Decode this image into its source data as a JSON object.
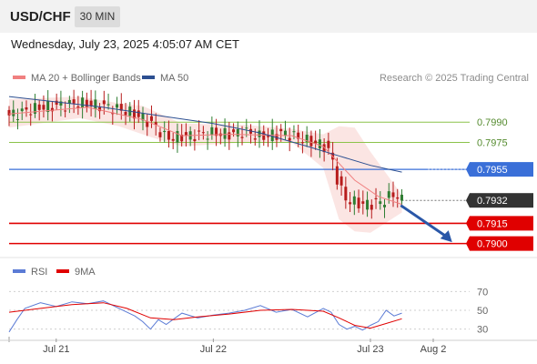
{
  "header": {
    "symbol": "USD/CHF",
    "timeframe": "30 MIN"
  },
  "datetime": "Wednesday, July 23, 2025 4:05:07 AM CET",
  "credit": "Research © 2025 Trading Central",
  "legend": {
    "main": [
      {
        "label": "MA 20 + Bollinger Bands",
        "color": "#f08080"
      },
      {
        "label": "MA 50",
        "color": "#2c4f91"
      }
    ],
    "rsi": [
      {
        "label": "RSI",
        "color": "#5b7bd5"
      },
      {
        "label": "9MA",
        "color": "#e00000"
      }
    ]
  },
  "colors": {
    "up": "#2e7d32",
    "down": "#b71c1c",
    "support": "#e00000",
    "resistance_green": "#8bc34a",
    "pivot": "#3a6fd8",
    "current": "#333333",
    "forecast_arrow": "#2a57a8"
  },
  "x_axis": {
    "labels": [
      {
        "text": "Jul 21",
        "t": 0.0
      },
      {
        "text": "Jul 22",
        "t": 1.0
      },
      {
        "text": "Jul 23",
        "t": 2.0
      },
      {
        "text": "Aug 2",
        "t": 2.4
      }
    ]
  },
  "chart_data": [
    {
      "type": "candlestick",
      "ylim": [
        0.7893,
        0.8005
      ],
      "x_unit": "days since Jul 21",
      "xlim": [
        -0.3,
        2.4
      ],
      "levels": [
        {
          "value": 0.799,
          "label": "0.7990",
          "kind": "resistance"
        },
        {
          "value": 0.7975,
          "label": "0.7975",
          "kind": "resistance"
        },
        {
          "value": 0.7955,
          "label": "0.7955",
          "kind": "pivot"
        },
        {
          "value": 0.7932,
          "label": "0.7932",
          "kind": "current"
        },
        {
          "value": 0.7915,
          "label": "0.7915",
          "kind": "support"
        },
        {
          "value": 0.79,
          "label": "0.7900",
          "kind": "support"
        }
      ],
      "close_path": [
        [
          -0.3,
          0.7995
        ],
        [
          -0.1,
          0.8001
        ],
        [
          0.15,
          0.8004
        ],
        [
          0.3,
          0.8002
        ],
        [
          0.45,
          0.7998
        ],
        [
          0.55,
          0.7993
        ],
        [
          0.63,
          0.7987
        ],
        [
          0.7,
          0.7978
        ],
        [
          0.85,
          0.798
        ],
        [
          1.0,
          0.7982
        ],
        [
          1.1,
          0.7981
        ],
        [
          1.2,
          0.7983
        ],
        [
          1.3,
          0.7979
        ],
        [
          1.45,
          0.7982
        ],
        [
          1.6,
          0.7976
        ],
        [
          1.7,
          0.7973
        ],
        [
          1.75,
          0.7966
        ],
        [
          1.8,
          0.7942
        ],
        [
          1.85,
          0.7932
        ],
        [
          1.95,
          0.7929
        ],
        [
          2.05,
          0.793
        ],
        [
          2.1,
          0.7933
        ],
        [
          2.15,
          0.7937
        ],
        [
          2.2,
          0.7932
        ]
      ],
      "ma50": [
        [
          -0.3,
          0.8009
        ],
        [
          0.3,
          0.8001
        ],
        [
          0.7,
          0.7994
        ],
        [
          1.0,
          0.7989
        ],
        [
          1.3,
          0.7982
        ],
        [
          1.6,
          0.7972
        ],
        [
          1.8,
          0.7965
        ],
        [
          2.0,
          0.7958
        ],
        [
          2.2,
          0.7953
        ]
      ],
      "ma20": [
        [
          -0.3,
          0.7996
        ],
        [
          0.2,
          0.8001
        ],
        [
          0.55,
          0.7992
        ],
        [
          0.8,
          0.798
        ],
        [
          1.1,
          0.7981
        ],
        [
          1.5,
          0.798
        ],
        [
          1.7,
          0.7972
        ],
        [
          1.9,
          0.7947
        ],
        [
          2.05,
          0.7935
        ],
        [
          2.2,
          0.7929
        ]
      ],
      "bb_upper": [
        [
          -0.3,
          0.8007
        ],
        [
          0.15,
          0.8009
        ],
        [
          0.4,
          0.8004
        ],
        [
          0.55,
          0.8002
        ],
        [
          0.8,
          0.7989
        ],
        [
          1.2,
          0.7988
        ],
        [
          1.5,
          0.7985
        ],
        [
          1.7,
          0.7981
        ],
        [
          1.8,
          0.7987
        ],
        [
          1.9,
          0.7986
        ],
        [
          2.0,
          0.7968
        ],
        [
          2.2,
          0.7936
        ]
      ],
      "bb_lower": [
        [
          -0.3,
          0.7986
        ],
        [
          0.15,
          0.7993
        ],
        [
          0.4,
          0.7987
        ],
        [
          0.6,
          0.7979
        ],
        [
          0.8,
          0.7972
        ],
        [
          1.2,
          0.7975
        ],
        [
          1.5,
          0.7975
        ],
        [
          1.7,
          0.7956
        ],
        [
          1.8,
          0.7918
        ],
        [
          1.9,
          0.7909
        ],
        [
          2.0,
          0.7908
        ],
        [
          2.2,
          0.7923
        ]
      ],
      "forecast": {
        "from": [
          2.17,
          0.7931
        ],
        "to": [
          2.3,
          0.7901
        ]
      }
    },
    {
      "type": "line",
      "title": "RSI",
      "ylim": [
        20,
        80
      ],
      "yticks": [
        70,
        50,
        30
      ],
      "rsi": [
        [
          -0.3,
          27
        ],
        [
          -0.25,
          40
        ],
        [
          -0.2,
          52
        ],
        [
          -0.1,
          58
        ],
        [
          0.0,
          54
        ],
        [
          0.1,
          59
        ],
        [
          0.2,
          57
        ],
        [
          0.3,
          60
        ],
        [
          0.4,
          52
        ],
        [
          0.5,
          44
        ],
        [
          0.55,
          38
        ],
        [
          0.6,
          30
        ],
        [
          0.65,
          40
        ],
        [
          0.7,
          35
        ],
        [
          0.8,
          47
        ],
        [
          0.9,
          42
        ],
        [
          1.0,
          45
        ],
        [
          1.1,
          47
        ],
        [
          1.2,
          50
        ],
        [
          1.3,
          55
        ],
        [
          1.4,
          48
        ],
        [
          1.5,
          51
        ],
        [
          1.6,
          43
        ],
        [
          1.7,
          52
        ],
        [
          1.75,
          48
        ],
        [
          1.8,
          35
        ],
        [
          1.85,
          30
        ],
        [
          1.9,
          33
        ],
        [
          1.95,
          29
        ],
        [
          2.0,
          34
        ],
        [
          2.05,
          38
        ],
        [
          2.1,
          50
        ],
        [
          2.15,
          44
        ],
        [
          2.2,
          47
        ]
      ],
      "ma9": [
        [
          -0.3,
          48
        ],
        [
          -0.1,
          52
        ],
        [
          0.1,
          56
        ],
        [
          0.3,
          58
        ],
        [
          0.45,
          52
        ],
        [
          0.6,
          42
        ],
        [
          0.75,
          40
        ],
        [
          0.9,
          43
        ],
        [
          1.1,
          46
        ],
        [
          1.3,
          50
        ],
        [
          1.5,
          51
        ],
        [
          1.7,
          49
        ],
        [
          1.8,
          42
        ],
        [
          1.9,
          34
        ],
        [
          2.0,
          31
        ],
        [
          2.1,
          36
        ],
        [
          2.2,
          41
        ]
      ]
    }
  ]
}
